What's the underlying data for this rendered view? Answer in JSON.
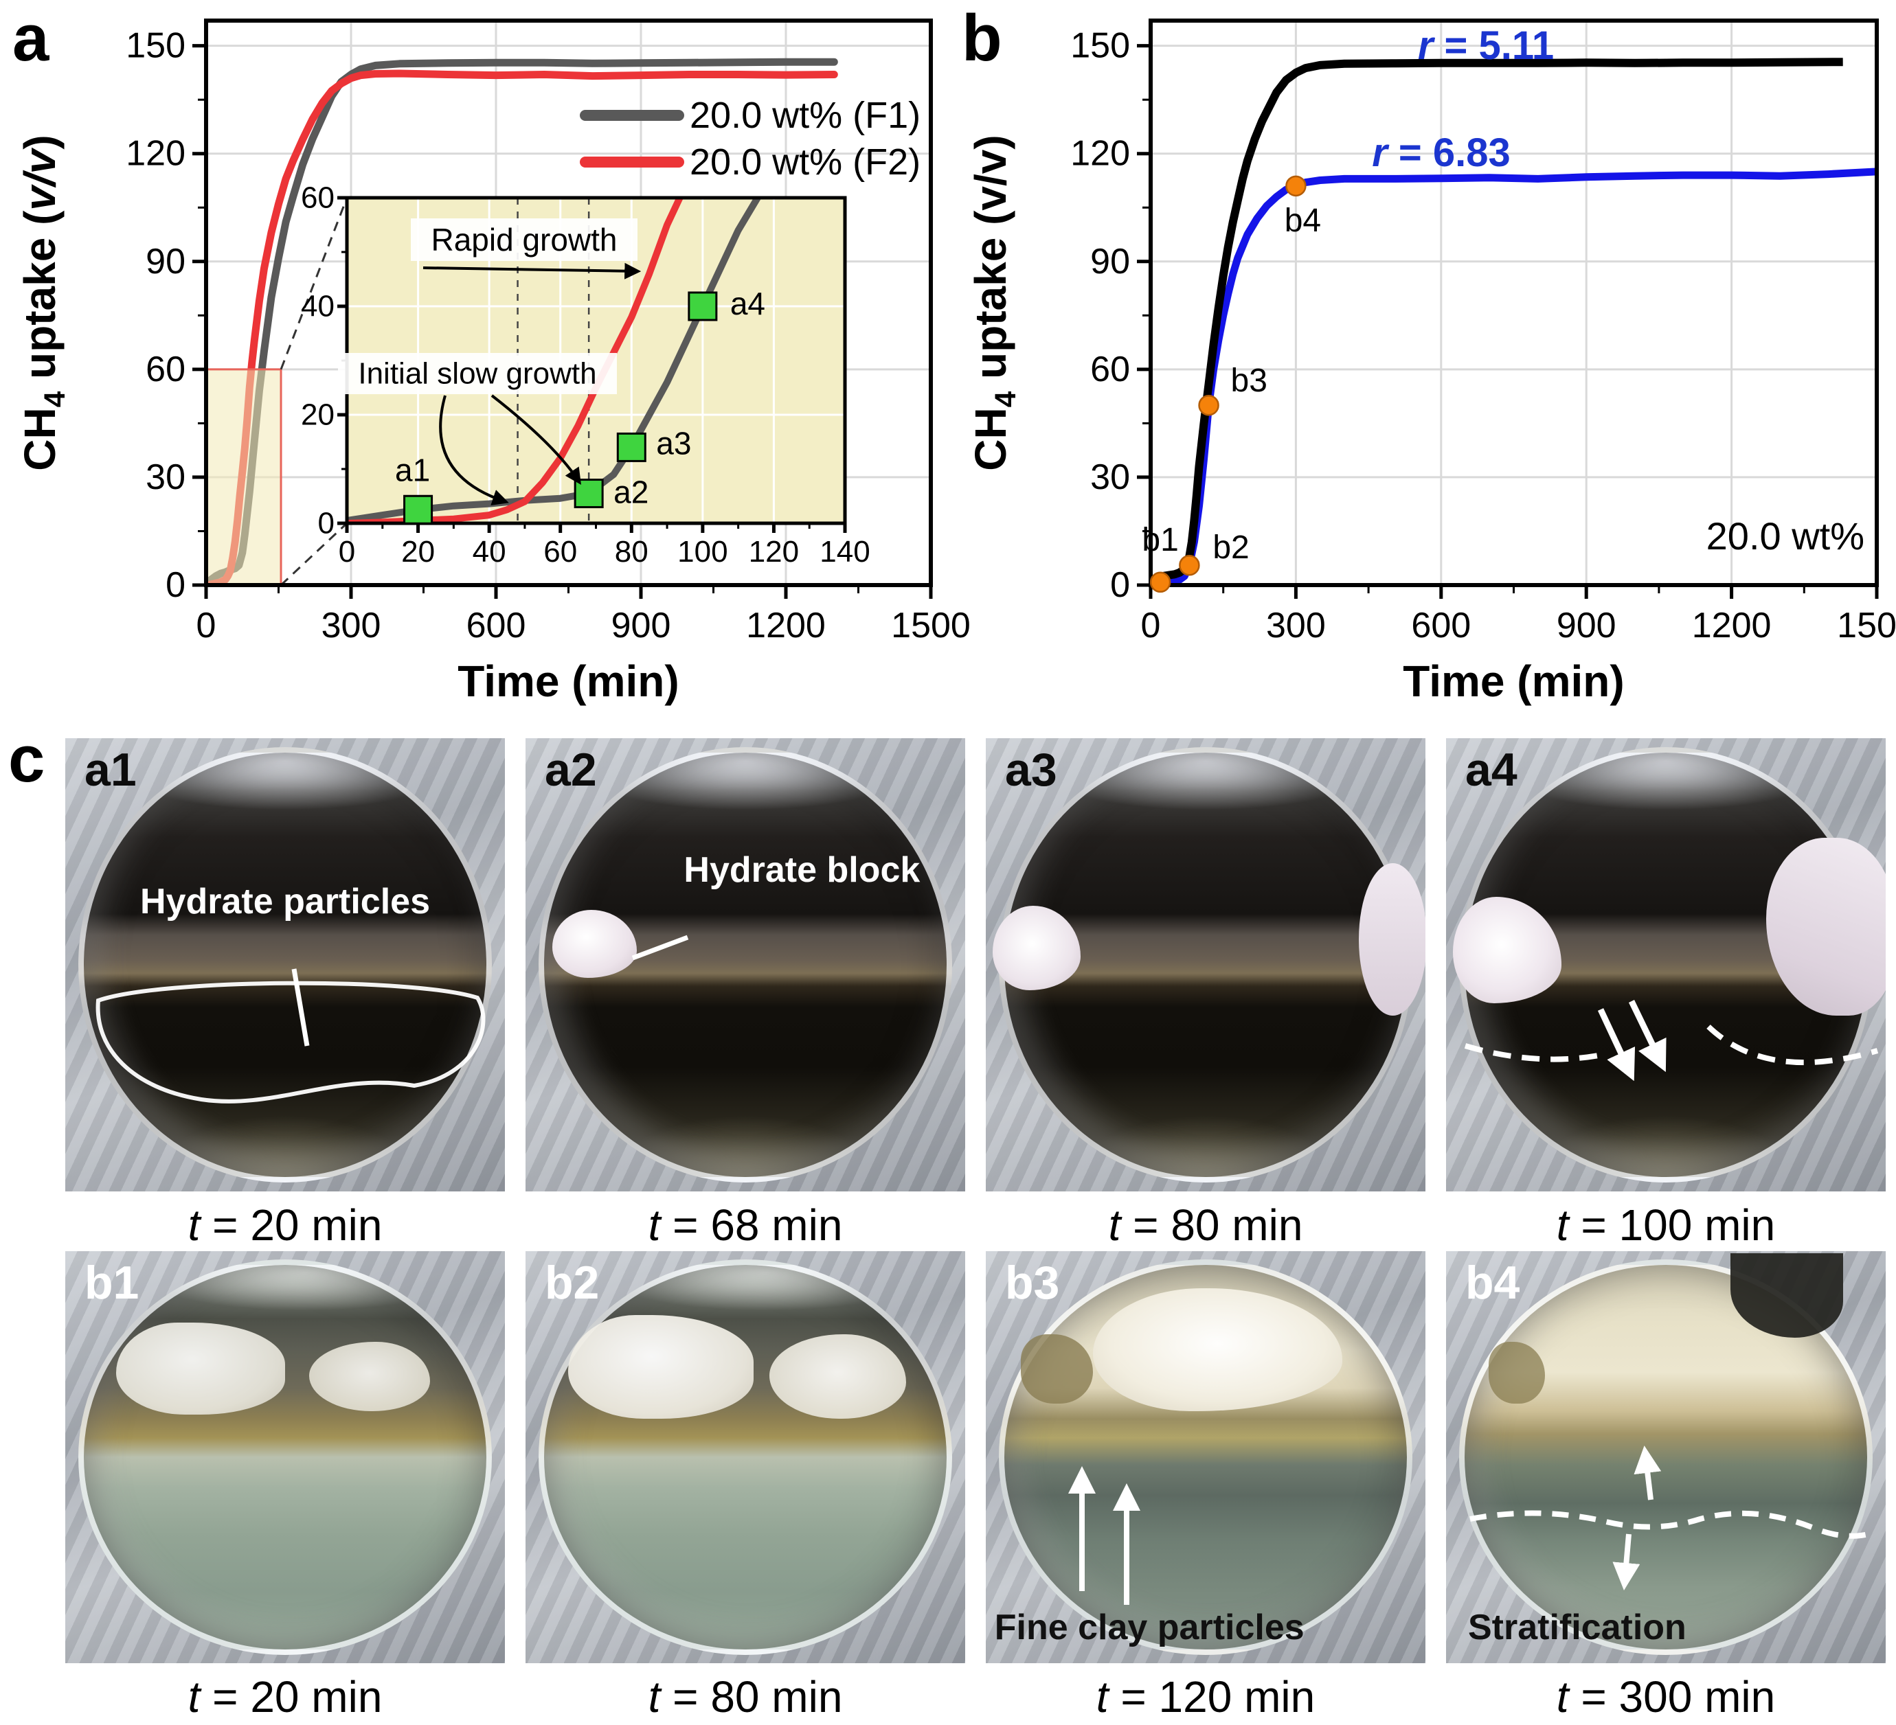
{
  "figure": {
    "panel_a": "a",
    "panel_b": "b",
    "panel_c": "c"
  },
  "chart_data": [
    {
      "id": "panel_a",
      "type": "line",
      "xlabel": "Time (min)",
      "ylabel": "CH4 uptake (v/v)",
      "ylabel_parts": {
        "pre": "CH",
        "sub": "4",
        "mid": " uptake (",
        "italic": "v/v",
        "post": ")"
      },
      "xlim": [
        0,
        1500
      ],
      "ylim": [
        0,
        157
      ],
      "x_ticks": [
        0,
        300,
        600,
        900,
        1200,
        1500
      ],
      "y_ticks": [
        0,
        30,
        60,
        90,
        120,
        150
      ],
      "grid": true,
      "legend_position": "top-right",
      "series": [
        {
          "name": "20.0 wt% (F1)",
          "color": "#595959",
          "points": [
            [
              0,
              0.5
            ],
            [
              10,
              1.5
            ],
            [
              20,
              2.5
            ],
            [
              30,
              3.2
            ],
            [
              40,
              3.6
            ],
            [
              50,
              4.2
            ],
            [
              60,
              4.6
            ],
            [
              68,
              5.5
            ],
            [
              75,
              9
            ],
            [
              80,
              14
            ],
            [
              90,
              26
            ],
            [
              100,
              40
            ],
            [
              110,
              54
            ],
            [
              120,
              65
            ],
            [
              135,
              80
            ],
            [
              150,
              91
            ],
            [
              165,
              101
            ],
            [
              180,
              108
            ],
            [
              200,
              117
            ],
            [
              220,
              124
            ],
            [
              240,
              130
            ],
            [
              260,
              136
            ],
            [
              280,
              140
            ],
            [
              300,
              142
            ],
            [
              320,
              143.5
            ],
            [
              350,
              144.5
            ],
            [
              400,
              145
            ],
            [
              500,
              145.2
            ],
            [
              600,
              145.3
            ],
            [
              700,
              145.3
            ],
            [
              800,
              145.1
            ],
            [
              900,
              145.2
            ],
            [
              1000,
              145.3
            ],
            [
              1100,
              145.4
            ],
            [
              1200,
              145.5
            ],
            [
              1300,
              145.5
            ]
          ]
        },
        {
          "name": "20.0 wt% (F2)",
          "color": "#ec3437",
          "points": [
            [
              0,
              0
            ],
            [
              10,
              0.2
            ],
            [
              20,
              0.5
            ],
            [
              30,
              0.8
            ],
            [
              40,
              1.5
            ],
            [
              45,
              2.5
            ],
            [
              50,
              4
            ],
            [
              55,
              7.5
            ],
            [
              60,
              12
            ],
            [
              65,
              18
            ],
            [
              70,
              25
            ],
            [
              75,
              31.5
            ],
            [
              80,
              38
            ],
            [
              85,
              46
            ],
            [
              90,
              55
            ],
            [
              95,
              62
            ],
            [
              100,
              68
            ],
            [
              110,
              79
            ],
            [
              120,
              88
            ],
            [
              135,
              98
            ],
            [
              150,
              106
            ],
            [
              165,
              113
            ],
            [
              180,
              118
            ],
            [
              200,
              124
            ],
            [
              220,
              129.5
            ],
            [
              240,
              134
            ],
            [
              260,
              137.5
            ],
            [
              280,
              139.5
            ],
            [
              300,
              141
            ],
            [
              320,
              141.8
            ],
            [
              350,
              142.2
            ],
            [
              400,
              142.3
            ],
            [
              500,
              142
            ],
            [
              600,
              141.8
            ],
            [
              700,
              142
            ],
            [
              800,
              141.6
            ],
            [
              900,
              141.8
            ],
            [
              1000,
              142
            ],
            [
              1100,
              142
            ],
            [
              1200,
              141.9
            ],
            [
              1300,
              142
            ]
          ]
        }
      ],
      "highlight_region": {
        "x": [
          0,
          155
        ],
        "y": [
          0,
          60
        ],
        "stroke": "#e8645a",
        "fill": "rgba(242,233,183,0.55)"
      },
      "inset": {
        "xlim": [
          0,
          140
        ],
        "ylim": [
          0,
          60
        ],
        "x_ticks": [
          0,
          20,
          40,
          60,
          80,
          100,
          120,
          140
        ],
        "y_ticks": [
          0,
          20,
          40,
          60
        ],
        "background": "#f3eec6",
        "dashed_x": [
          48,
          68
        ],
        "marker_color": "#3fd43f",
        "annotations": [
          {
            "text": "Rapid growth"
          },
          {
            "text": "Initial slow growth"
          }
        ],
        "marked_points": [
          {
            "label": "a1",
            "x": 20,
            "y": 2.5
          },
          {
            "label": "a2",
            "x": 68,
            "y": 5.5
          },
          {
            "label": "a3",
            "x": 80,
            "y": 14
          },
          {
            "label": "a4",
            "x": 100,
            "y": 40
          }
        ]
      }
    },
    {
      "id": "panel_b",
      "type": "line",
      "xlabel": "Time (min)",
      "ylabel": "CH4 uptake (v/v)",
      "ylabel_parts": {
        "pre": "CH",
        "sub": "4",
        "mid": " uptake (v/v)",
        "italic": "",
        "post": ""
      },
      "xlim": [
        0,
        1500
      ],
      "ylim": [
        0,
        157
      ],
      "x_ticks": [
        0,
        300,
        600,
        900,
        1200,
        1500
      ],
      "y_ticks": [
        0,
        30,
        60,
        90,
        120,
        150
      ],
      "grid": true,
      "annotation_color": "#1b35cf",
      "corner_label": "20.0 wt%",
      "marker_color": "#f5820a",
      "series": [
        {
          "name": "F1",
          "color": "#000000",
          "annotation": {
            "italic": "r",
            "rest": " = 5.11"
          },
          "points": [
            [
              0,
              1
            ],
            [
              10,
              1.8
            ],
            [
              20,
              2.3
            ],
            [
              30,
              2.6
            ],
            [
              40,
              2.8
            ],
            [
              50,
              3
            ],
            [
              60,
              3.5
            ],
            [
              70,
              4.5
            ],
            [
              80,
              8
            ],
            [
              85,
              12
            ],
            [
              90,
              18
            ],
            [
              95,
              25
            ],
            [
              100,
              33
            ],
            [
              110,
              45
            ],
            [
              120,
              56
            ],
            [
              130,
              67
            ],
            [
              140,
              77
            ],
            [
              150,
              86
            ],
            [
              160,
              94
            ],
            [
              170,
              101
            ],
            [
              180,
              107
            ],
            [
              190,
              113
            ],
            [
              200,
              118
            ],
            [
              215,
              124
            ],
            [
              230,
              129
            ],
            [
              245,
              133
            ],
            [
              260,
              137
            ],
            [
              280,
              140.5
            ],
            [
              300,
              142.5
            ],
            [
              320,
              143.8
            ],
            [
              350,
              144.6
            ],
            [
              400,
              145
            ],
            [
              500,
              145.1
            ],
            [
              600,
              145.2
            ],
            [
              700,
              145.2
            ],
            [
              800,
              145.2
            ],
            [
              900,
              145.3
            ],
            [
              1000,
              145.2
            ],
            [
              1100,
              145.3
            ],
            [
              1200,
              145.3
            ],
            [
              1300,
              145.4
            ],
            [
              1430,
              145.5
            ]
          ]
        },
        {
          "name": "F2",
          "color": "#1414e8",
          "annotation": {
            "italic": "r",
            "rest": " = 6.83"
          },
          "points": [
            [
              0,
              0.3
            ],
            [
              20,
              0.8
            ],
            [
              40,
              1
            ],
            [
              60,
              1.5
            ],
            [
              70,
              2.5
            ],
            [
              80,
              5.5
            ],
            [
              90,
              12
            ],
            [
              100,
              22
            ],
            [
              110,
              35
            ],
            [
              120,
              50
            ],
            [
              130,
              60
            ],
            [
              140,
              68
            ],
            [
              150,
              75
            ],
            [
              160,
              81
            ],
            [
              170,
              86.5
            ],
            [
              180,
              91
            ],
            [
              200,
              97.5
            ],
            [
              220,
              102
            ],
            [
              240,
              105.5
            ],
            [
              260,
              108
            ],
            [
              280,
              110
            ],
            [
              300,
              111
            ],
            [
              320,
              112
            ],
            [
              350,
              112.6
            ],
            [
              400,
              113
            ],
            [
              500,
              113
            ],
            [
              600,
              113.1
            ],
            [
              700,
              113.3
            ],
            [
              800,
              113
            ],
            [
              900,
              113.5
            ],
            [
              1000,
              113.8
            ],
            [
              1100,
              114
            ],
            [
              1200,
              114
            ],
            [
              1300,
              113.8
            ],
            [
              1400,
              114.3
            ],
            [
              1500,
              115
            ]
          ]
        }
      ],
      "marked_points": [
        {
          "label": "b1",
          "x": 20,
          "y": 0.8
        },
        {
          "label": "b2",
          "x": 80,
          "y": 5.5
        },
        {
          "label": "b3",
          "x": 120,
          "y": 50
        },
        {
          "label": "b4",
          "x": 300,
          "y": 111
        }
      ]
    }
  ],
  "photos": [
    {
      "id": "a1",
      "label": "a1",
      "time_symbol": "t",
      "time_rest": " = 20 min",
      "annotation": "Hydrate particles"
    },
    {
      "id": "a2",
      "label": "a2",
      "time_symbol": "t",
      "time_rest": " = 68 min",
      "annotation": "Hydrate block"
    },
    {
      "id": "a3",
      "label": "a3",
      "time_symbol": "t",
      "time_rest": " = 80 min",
      "annotation": ""
    },
    {
      "id": "a4",
      "label": "a4",
      "time_symbol": "t",
      "time_rest": " = 100 min",
      "annotation": ""
    },
    {
      "id": "b1",
      "label": "b1",
      "time_symbol": "t",
      "time_rest": " = 20 min",
      "annotation": ""
    },
    {
      "id": "b2",
      "label": "b2",
      "time_symbol": "t",
      "time_rest": " = 80 min",
      "annotation": ""
    },
    {
      "id": "b3",
      "label": "b3",
      "time_symbol": "t",
      "time_rest": " = 120 min",
      "annotation": "Fine clay particles"
    },
    {
      "id": "b4",
      "label": "b4",
      "time_symbol": "t",
      "time_rest": " = 300 min",
      "annotation": "Stratification"
    }
  ]
}
